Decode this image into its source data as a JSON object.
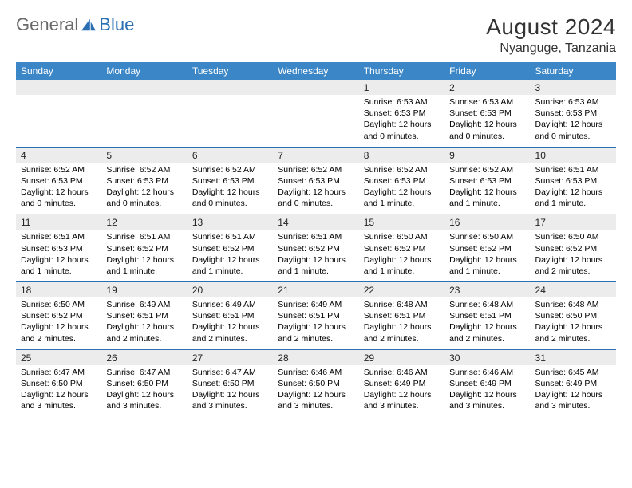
{
  "logo": {
    "text1": "General",
    "text2": "Blue"
  },
  "title": "August 2024",
  "location": "Nyanguge, Tanzania",
  "colors": {
    "header_bg": "#3b86c6",
    "header_text": "#ffffff",
    "daynum_bg": "#ececec",
    "week_border": "#2b6fb3",
    "logo_gray": "#6a6a6a",
    "logo_blue": "#2b6fb3"
  },
  "day_headers": [
    "Sunday",
    "Monday",
    "Tuesday",
    "Wednesday",
    "Thursday",
    "Friday",
    "Saturday"
  ],
  "weeks": [
    [
      null,
      null,
      null,
      null,
      {
        "n": "1",
        "sr": "6:53 AM",
        "ss": "6:53 PM",
        "dl": "12 hours and 0 minutes."
      },
      {
        "n": "2",
        "sr": "6:53 AM",
        "ss": "6:53 PM",
        "dl": "12 hours and 0 minutes."
      },
      {
        "n": "3",
        "sr": "6:53 AM",
        "ss": "6:53 PM",
        "dl": "12 hours and 0 minutes."
      }
    ],
    [
      {
        "n": "4",
        "sr": "6:52 AM",
        "ss": "6:53 PM",
        "dl": "12 hours and 0 minutes."
      },
      {
        "n": "5",
        "sr": "6:52 AM",
        "ss": "6:53 PM",
        "dl": "12 hours and 0 minutes."
      },
      {
        "n": "6",
        "sr": "6:52 AM",
        "ss": "6:53 PM",
        "dl": "12 hours and 0 minutes."
      },
      {
        "n": "7",
        "sr": "6:52 AM",
        "ss": "6:53 PM",
        "dl": "12 hours and 0 minutes."
      },
      {
        "n": "8",
        "sr": "6:52 AM",
        "ss": "6:53 PM",
        "dl": "12 hours and 1 minute."
      },
      {
        "n": "9",
        "sr": "6:52 AM",
        "ss": "6:53 PM",
        "dl": "12 hours and 1 minute."
      },
      {
        "n": "10",
        "sr": "6:51 AM",
        "ss": "6:53 PM",
        "dl": "12 hours and 1 minute."
      }
    ],
    [
      {
        "n": "11",
        "sr": "6:51 AM",
        "ss": "6:53 PM",
        "dl": "12 hours and 1 minute."
      },
      {
        "n": "12",
        "sr": "6:51 AM",
        "ss": "6:52 PM",
        "dl": "12 hours and 1 minute."
      },
      {
        "n": "13",
        "sr": "6:51 AM",
        "ss": "6:52 PM",
        "dl": "12 hours and 1 minute."
      },
      {
        "n": "14",
        "sr": "6:51 AM",
        "ss": "6:52 PM",
        "dl": "12 hours and 1 minute."
      },
      {
        "n": "15",
        "sr": "6:50 AM",
        "ss": "6:52 PM",
        "dl": "12 hours and 1 minute."
      },
      {
        "n": "16",
        "sr": "6:50 AM",
        "ss": "6:52 PM",
        "dl": "12 hours and 1 minute."
      },
      {
        "n": "17",
        "sr": "6:50 AM",
        "ss": "6:52 PM",
        "dl": "12 hours and 2 minutes."
      }
    ],
    [
      {
        "n": "18",
        "sr": "6:50 AM",
        "ss": "6:52 PM",
        "dl": "12 hours and 2 minutes."
      },
      {
        "n": "19",
        "sr": "6:49 AM",
        "ss": "6:51 PM",
        "dl": "12 hours and 2 minutes."
      },
      {
        "n": "20",
        "sr": "6:49 AM",
        "ss": "6:51 PM",
        "dl": "12 hours and 2 minutes."
      },
      {
        "n": "21",
        "sr": "6:49 AM",
        "ss": "6:51 PM",
        "dl": "12 hours and 2 minutes."
      },
      {
        "n": "22",
        "sr": "6:48 AM",
        "ss": "6:51 PM",
        "dl": "12 hours and 2 minutes."
      },
      {
        "n": "23",
        "sr": "6:48 AM",
        "ss": "6:51 PM",
        "dl": "12 hours and 2 minutes."
      },
      {
        "n": "24",
        "sr": "6:48 AM",
        "ss": "6:50 PM",
        "dl": "12 hours and 2 minutes."
      }
    ],
    [
      {
        "n": "25",
        "sr": "6:47 AM",
        "ss": "6:50 PM",
        "dl": "12 hours and 3 minutes."
      },
      {
        "n": "26",
        "sr": "6:47 AM",
        "ss": "6:50 PM",
        "dl": "12 hours and 3 minutes."
      },
      {
        "n": "27",
        "sr": "6:47 AM",
        "ss": "6:50 PM",
        "dl": "12 hours and 3 minutes."
      },
      {
        "n": "28",
        "sr": "6:46 AM",
        "ss": "6:50 PM",
        "dl": "12 hours and 3 minutes."
      },
      {
        "n": "29",
        "sr": "6:46 AM",
        "ss": "6:49 PM",
        "dl": "12 hours and 3 minutes."
      },
      {
        "n": "30",
        "sr": "6:46 AM",
        "ss": "6:49 PM",
        "dl": "12 hours and 3 minutes."
      },
      {
        "n": "31",
        "sr": "6:45 AM",
        "ss": "6:49 PM",
        "dl": "12 hours and 3 minutes."
      }
    ]
  ],
  "labels": {
    "sunrise": "Sunrise: ",
    "sunset": "Sunset: ",
    "daylight": "Daylight: "
  }
}
